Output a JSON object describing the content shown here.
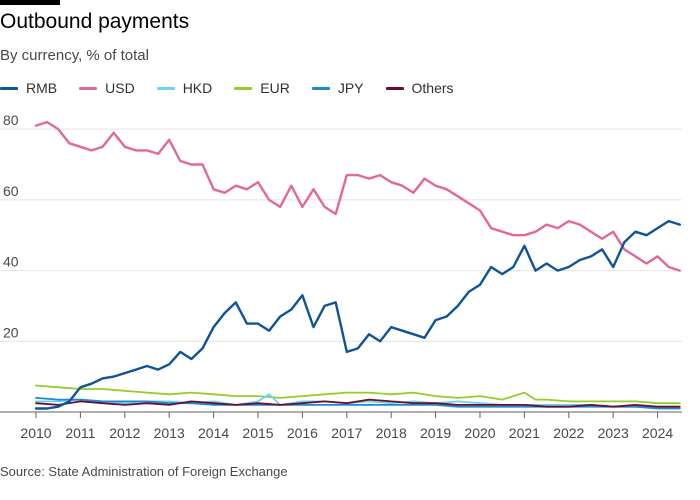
{
  "title": "Outbound payments",
  "subtitle": "By currency, % of total",
  "source": "Source: State Administration of Foreign Exchange",
  "legend": [
    {
      "name": "RMB",
      "color": "#0f5499"
    },
    {
      "name": "USD",
      "color": "#e3679b"
    },
    {
      "name": "HKD",
      "color": "#66d6f5"
    },
    {
      "name": "EUR",
      "color": "#96cc28"
    },
    {
      "name": "JPY",
      "color": "#1a8bd3"
    },
    {
      "name": "Others",
      "color": "#6e0c2d"
    }
  ],
  "chart_data": {
    "type": "line",
    "title": "Outbound payments",
    "subtitle": "By currency, % of total",
    "xlabel": "",
    "ylabel": "",
    "xlim": [
      2010.0,
      2024.55
    ],
    "ylim": [
      0,
      84
    ],
    "yticks": [
      20,
      40,
      60,
      80
    ],
    "xticks": [
      2010,
      2011,
      2012,
      2013,
      2014,
      2015,
      2016,
      2017,
      2018,
      2019,
      2020,
      2021,
      2022,
      2023,
      2024
    ],
    "grid": true,
    "series": [
      {
        "name": "RMB",
        "color": "#0f5499",
        "points": [
          [
            2010.0,
            1
          ],
          [
            2010.25,
            1
          ],
          [
            2010.5,
            1.5
          ],
          [
            2010.75,
            3
          ],
          [
            2011.0,
            7
          ],
          [
            2011.25,
            8
          ],
          [
            2011.5,
            9.5
          ],
          [
            2011.75,
            10
          ],
          [
            2012.0,
            11
          ],
          [
            2012.25,
            12
          ],
          [
            2012.5,
            13
          ],
          [
            2012.75,
            12
          ],
          [
            2013.0,
            13.5
          ],
          [
            2013.25,
            17
          ],
          [
            2013.5,
            15
          ],
          [
            2013.75,
            18
          ],
          [
            2014.0,
            24
          ],
          [
            2014.25,
            28
          ],
          [
            2014.5,
            31
          ],
          [
            2014.75,
            25
          ],
          [
            2015.0,
            25
          ],
          [
            2015.25,
            23
          ],
          [
            2015.5,
            27
          ],
          [
            2015.75,
            29
          ],
          [
            2016.0,
            33
          ],
          [
            2016.25,
            24
          ],
          [
            2016.5,
            30
          ],
          [
            2016.75,
            31
          ],
          [
            2017.0,
            17
          ],
          [
            2017.25,
            18
          ],
          [
            2017.5,
            22
          ],
          [
            2017.75,
            20
          ],
          [
            2018.0,
            24
          ],
          [
            2018.25,
            23
          ],
          [
            2018.5,
            22
          ],
          [
            2018.75,
            21
          ],
          [
            2019.0,
            26
          ],
          [
            2019.25,
            27
          ],
          [
            2019.5,
            30
          ],
          [
            2019.75,
            34
          ],
          [
            2020.0,
            36
          ],
          [
            2020.25,
            41
          ],
          [
            2020.5,
            39
          ],
          [
            2020.75,
            41
          ],
          [
            2021.0,
            47
          ],
          [
            2021.25,
            40
          ],
          [
            2021.5,
            42
          ],
          [
            2021.75,
            40
          ],
          [
            2022.0,
            41
          ],
          [
            2022.25,
            43
          ],
          [
            2022.5,
            44
          ],
          [
            2022.75,
            46
          ],
          [
            2023.0,
            41
          ],
          [
            2023.25,
            48
          ],
          [
            2023.5,
            51
          ],
          [
            2023.75,
            50
          ],
          [
            2024.0,
            52
          ],
          [
            2024.25,
            54
          ],
          [
            2024.5,
            53
          ]
        ]
      },
      {
        "name": "USD",
        "color": "#e3679b",
        "points": [
          [
            2010.0,
            81
          ],
          [
            2010.25,
            82
          ],
          [
            2010.5,
            80
          ],
          [
            2010.75,
            76
          ],
          [
            2011.0,
            75
          ],
          [
            2011.25,
            74
          ],
          [
            2011.5,
            75
          ],
          [
            2011.75,
            79
          ],
          [
            2012.0,
            75
          ],
          [
            2012.25,
            74
          ],
          [
            2012.5,
            74
          ],
          [
            2012.75,
            73
          ],
          [
            2013.0,
            77
          ],
          [
            2013.25,
            71
          ],
          [
            2013.5,
            70
          ],
          [
            2013.75,
            70
          ],
          [
            2014.0,
            63
          ],
          [
            2014.25,
            62
          ],
          [
            2014.5,
            64
          ],
          [
            2014.75,
            63
          ],
          [
            2015.0,
            65
          ],
          [
            2015.25,
            60
          ],
          [
            2015.5,
            58
          ],
          [
            2015.75,
            64
          ],
          [
            2016.0,
            58
          ],
          [
            2016.25,
            63
          ],
          [
            2016.5,
            58
          ],
          [
            2016.75,
            56
          ],
          [
            2017.0,
            67
          ],
          [
            2017.25,
            67
          ],
          [
            2017.5,
            66
          ],
          [
            2017.75,
            67
          ],
          [
            2018.0,
            65
          ],
          [
            2018.25,
            64
          ],
          [
            2018.5,
            62
          ],
          [
            2018.75,
            66
          ],
          [
            2019.0,
            64
          ],
          [
            2019.25,
            63
          ],
          [
            2019.5,
            61
          ],
          [
            2019.75,
            59
          ],
          [
            2020.0,
            57
          ],
          [
            2020.25,
            52
          ],
          [
            2020.5,
            51
          ],
          [
            2020.75,
            50
          ],
          [
            2021.0,
            50
          ],
          [
            2021.25,
            51
          ],
          [
            2021.5,
            53
          ],
          [
            2021.75,
            52
          ],
          [
            2022.0,
            54
          ],
          [
            2022.25,
            53
          ],
          [
            2022.5,
            51
          ],
          [
            2022.75,
            49
          ],
          [
            2023.0,
            51
          ],
          [
            2023.25,
            46
          ],
          [
            2023.5,
            44
          ],
          [
            2023.75,
            42
          ],
          [
            2024.0,
            44
          ],
          [
            2024.25,
            41
          ],
          [
            2024.5,
            40
          ]
        ]
      },
      {
        "name": "HKD",
        "color": "#66d6f5",
        "points": [
          [
            2010.0,
            3
          ],
          [
            2010.5,
            3
          ],
          [
            2011.0,
            3.5
          ],
          [
            2011.5,
            3
          ],
          [
            2012.0,
            2.5
          ],
          [
            2012.5,
            3
          ],
          [
            2013.0,
            3
          ],
          [
            2013.5,
            2.5
          ],
          [
            2014.0,
            3
          ],
          [
            2014.5,
            2
          ],
          [
            2015.0,
            3
          ],
          [
            2015.25,
            5
          ],
          [
            2015.5,
            2
          ],
          [
            2016.0,
            3
          ],
          [
            2016.5,
            3
          ],
          [
            2017.0,
            2.5
          ],
          [
            2017.5,
            3
          ],
          [
            2018.0,
            2.5
          ],
          [
            2018.5,
            3
          ],
          [
            2019.0,
            2.5
          ],
          [
            2019.5,
            3
          ],
          [
            2020.0,
            2.5
          ],
          [
            2020.5,
            2
          ],
          [
            2021.0,
            2
          ],
          [
            2021.5,
            2
          ],
          [
            2022.0,
            2
          ],
          [
            2022.5,
            2
          ],
          [
            2023.0,
            1.5
          ],
          [
            2023.5,
            1.5
          ],
          [
            2024.0,
            1.5
          ],
          [
            2024.5,
            1.5
          ]
        ]
      },
      {
        "name": "EUR",
        "color": "#96cc28",
        "points": [
          [
            2010.0,
            7.5
          ],
          [
            2010.5,
            7
          ],
          [
            2011.0,
            6.5
          ],
          [
            2011.5,
            6.5
          ],
          [
            2012.0,
            6
          ],
          [
            2012.5,
            5.5
          ],
          [
            2013.0,
            5
          ],
          [
            2013.5,
            5.5
          ],
          [
            2014.0,
            5
          ],
          [
            2014.5,
            4.5
          ],
          [
            2015.0,
            4.5
          ],
          [
            2015.5,
            4
          ],
          [
            2016.0,
            4.5
          ],
          [
            2016.5,
            5
          ],
          [
            2017.0,
            5.5
          ],
          [
            2017.5,
            5.5
          ],
          [
            2018.0,
            5
          ],
          [
            2018.5,
            5.5
          ],
          [
            2019.0,
            4.5
          ],
          [
            2019.5,
            4
          ],
          [
            2020.0,
            4.5
          ],
          [
            2020.5,
            3.5
          ],
          [
            2021.0,
            5.5
          ],
          [
            2021.25,
            3.5
          ],
          [
            2021.5,
            3.5
          ],
          [
            2022.0,
            3
          ],
          [
            2022.5,
            3
          ],
          [
            2023.0,
            3
          ],
          [
            2023.5,
            3
          ],
          [
            2024.0,
            2.5
          ],
          [
            2024.5,
            2.5
          ]
        ]
      },
      {
        "name": "JPY",
        "color": "#1a8bd3",
        "points": [
          [
            2010.0,
            4
          ],
          [
            2010.5,
            3.5
          ],
          [
            2011.0,
            3.5
          ],
          [
            2011.5,
            3
          ],
          [
            2012.0,
            3
          ],
          [
            2012.5,
            3
          ],
          [
            2013.0,
            2.5
          ],
          [
            2013.5,
            2.5
          ],
          [
            2014.0,
            2
          ],
          [
            2014.5,
            2
          ],
          [
            2015.0,
            2
          ],
          [
            2015.5,
            2
          ],
          [
            2016.0,
            2
          ],
          [
            2016.5,
            2
          ],
          [
            2017.0,
            2
          ],
          [
            2017.5,
            2
          ],
          [
            2018.0,
            2
          ],
          [
            2018.5,
            2
          ],
          [
            2019.0,
            2
          ],
          [
            2019.5,
            1.5
          ],
          [
            2020.0,
            1.5
          ],
          [
            2020.5,
            1.5
          ],
          [
            2021.0,
            1.5
          ],
          [
            2021.5,
            1.5
          ],
          [
            2022.0,
            1.5
          ],
          [
            2022.5,
            1.5
          ],
          [
            2023.0,
            1.5
          ],
          [
            2023.5,
            1.5
          ],
          [
            2024.0,
            1
          ],
          [
            2024.5,
            1
          ]
        ]
      },
      {
        "name": "Others",
        "color": "#6e0c2d",
        "points": [
          [
            2010.0,
            2.5
          ],
          [
            2010.5,
            2
          ],
          [
            2011.0,
            3
          ],
          [
            2011.5,
            2.5
          ],
          [
            2012.0,
            2
          ],
          [
            2012.5,
            2.5
          ],
          [
            2013.0,
            2
          ],
          [
            2013.5,
            3
          ],
          [
            2014.0,
            2.5
          ],
          [
            2014.5,
            2
          ],
          [
            2015.0,
            2.5
          ],
          [
            2015.5,
            2
          ],
          [
            2016.0,
            2.5
          ],
          [
            2016.5,
            3
          ],
          [
            2017.0,
            2.5
          ],
          [
            2017.5,
            3.5
          ],
          [
            2018.0,
            3
          ],
          [
            2018.5,
            2.5
          ],
          [
            2019.0,
            2.5
          ],
          [
            2019.5,
            2
          ],
          [
            2020.0,
            2
          ],
          [
            2020.5,
            2
          ],
          [
            2021.0,
            2
          ],
          [
            2021.5,
            1.5
          ],
          [
            2022.0,
            1.5
          ],
          [
            2022.5,
            2
          ],
          [
            2023.0,
            1.5
          ],
          [
            2023.5,
            2
          ],
          [
            2024.0,
            1.5
          ],
          [
            2024.5,
            1.5
          ]
        ]
      }
    ]
  }
}
